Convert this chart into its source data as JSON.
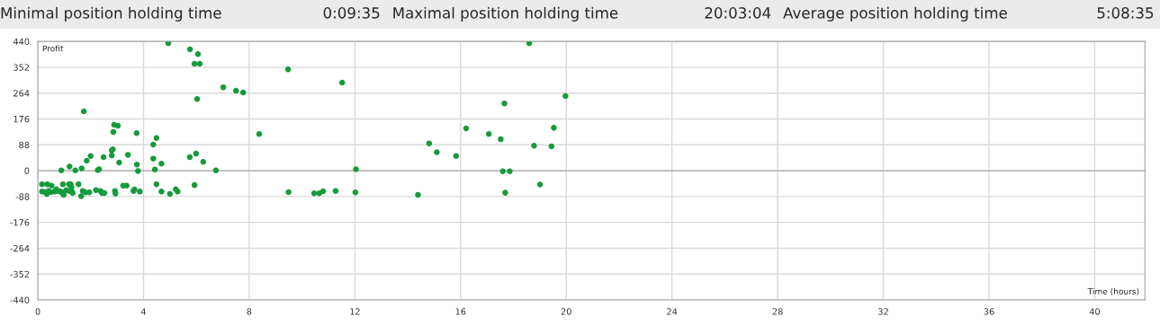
{
  "chart_data": {
    "type": "scatter",
    "annotations": [
      "Minimal position holding time",
      "0:09:35",
      "Maximal position holding time",
      "20:03:04",
      "Average position holding time",
      "5:08:35"
    ],
    "xlabel": "Time (hours)",
    "ylabel": "Profit",
    "xlim": [
      0,
      41.9
    ],
    "ylim": [
      -440,
      440
    ],
    "xticks": [
      0,
      4,
      8,
      12,
      16,
      20,
      24,
      28,
      32,
      36,
      40
    ],
    "yticks": [
      -440,
      -352,
      -264,
      -176,
      -88,
      0,
      88,
      176,
      264,
      352,
      440
    ],
    "grid": true,
    "marker": "circle",
    "legend": false,
    "series": [
      {
        "color": "#169b3c",
        "x": [
          4.94,
          5.76,
          6.06,
          5.93,
          6.13,
          6.03,
          7.02,
          7.5,
          7.77,
          8.38,
          9.47,
          11.52,
          18.6,
          19.97,
          1.74,
          2.89,
          3.03,
          2.86,
          3.74,
          2.8,
          2.84,
          4.49,
          4.37,
          4.37,
          4.68,
          4.43,
          3.41,
          3.08,
          2.8,
          2.49,
          2.0,
          1.85,
          1.66,
          1.42,
          1.2,
          0.89,
          2.27,
          2.32,
          3.75,
          3.79,
          5.75,
          5.99,
          6.26,
          6.74,
          5.93,
          4.49,
          0.16,
          0.36,
          0.52,
          0.16,
          0.27,
          0.34,
          0.41,
          0.5,
          0.64,
          0.7,
          0.77,
          0.86,
          0.95,
          0.93,
          0.98,
          1.07,
          1.18,
          1.24,
          1.27,
          1.18,
          1.29,
          1.32,
          1.54,
          1.64,
          1.7,
          1.81,
          1.95,
          2.2,
          2.37,
          2.43,
          2.52,
          2.92,
          2.94,
          3.23,
          3.36,
          3.62,
          3.66,
          3.86,
          4.68,
          5.0,
          5.22,
          5.29,
          9.49,
          10.46,
          10.65,
          10.8,
          11.27,
          12.02,
          12.04,
          14.39,
          14.81,
          15.1,
          15.83,
          16.21,
          17.07,
          17.52,
          17.66,
          17.6,
          17.86,
          17.69,
          18.78,
          19.01,
          19.44,
          19.53
        ],
        "values": [
          434,
          413,
          397,
          364,
          364,
          244,
          284,
          272,
          266,
          125,
          345,
          300,
          434,
          254,
          202,
          156,
          153,
          132,
          128,
          69,
          73,
          111,
          89,
          41,
          24,
          4,
          54,
          28,
          52,
          46,
          50,
          34,
          8,
          1,
          14,
          1,
          2,
          5,
          21,
          -1,
          46,
          58,
          30,
          1,
          -49,
          -46,
          -46,
          -46,
          -51,
          -71,
          -73,
          -79,
          -69,
          -73,
          -71,
          -63,
          -69,
          -71,
          -46,
          -76,
          -82,
          -66,
          -46,
          -46,
          -56,
          -69,
          -71,
          -76,
          -46,
          -87,
          -69,
          -74,
          -74,
          -66,
          -69,
          -76,
          -76,
          -69,
          -78,
          -51,
          -51,
          -69,
          -64,
          -71,
          -71,
          -79,
          -63,
          -71,
          -73,
          -77,
          -77,
          -70,
          -69,
          -74,
          5,
          -82,
          93,
          63,
          50,
          144,
          125,
          107,
          229,
          -2,
          -2,
          -75,
          85,
          -47,
          83,
          146
        ]
      }
    ]
  }
}
